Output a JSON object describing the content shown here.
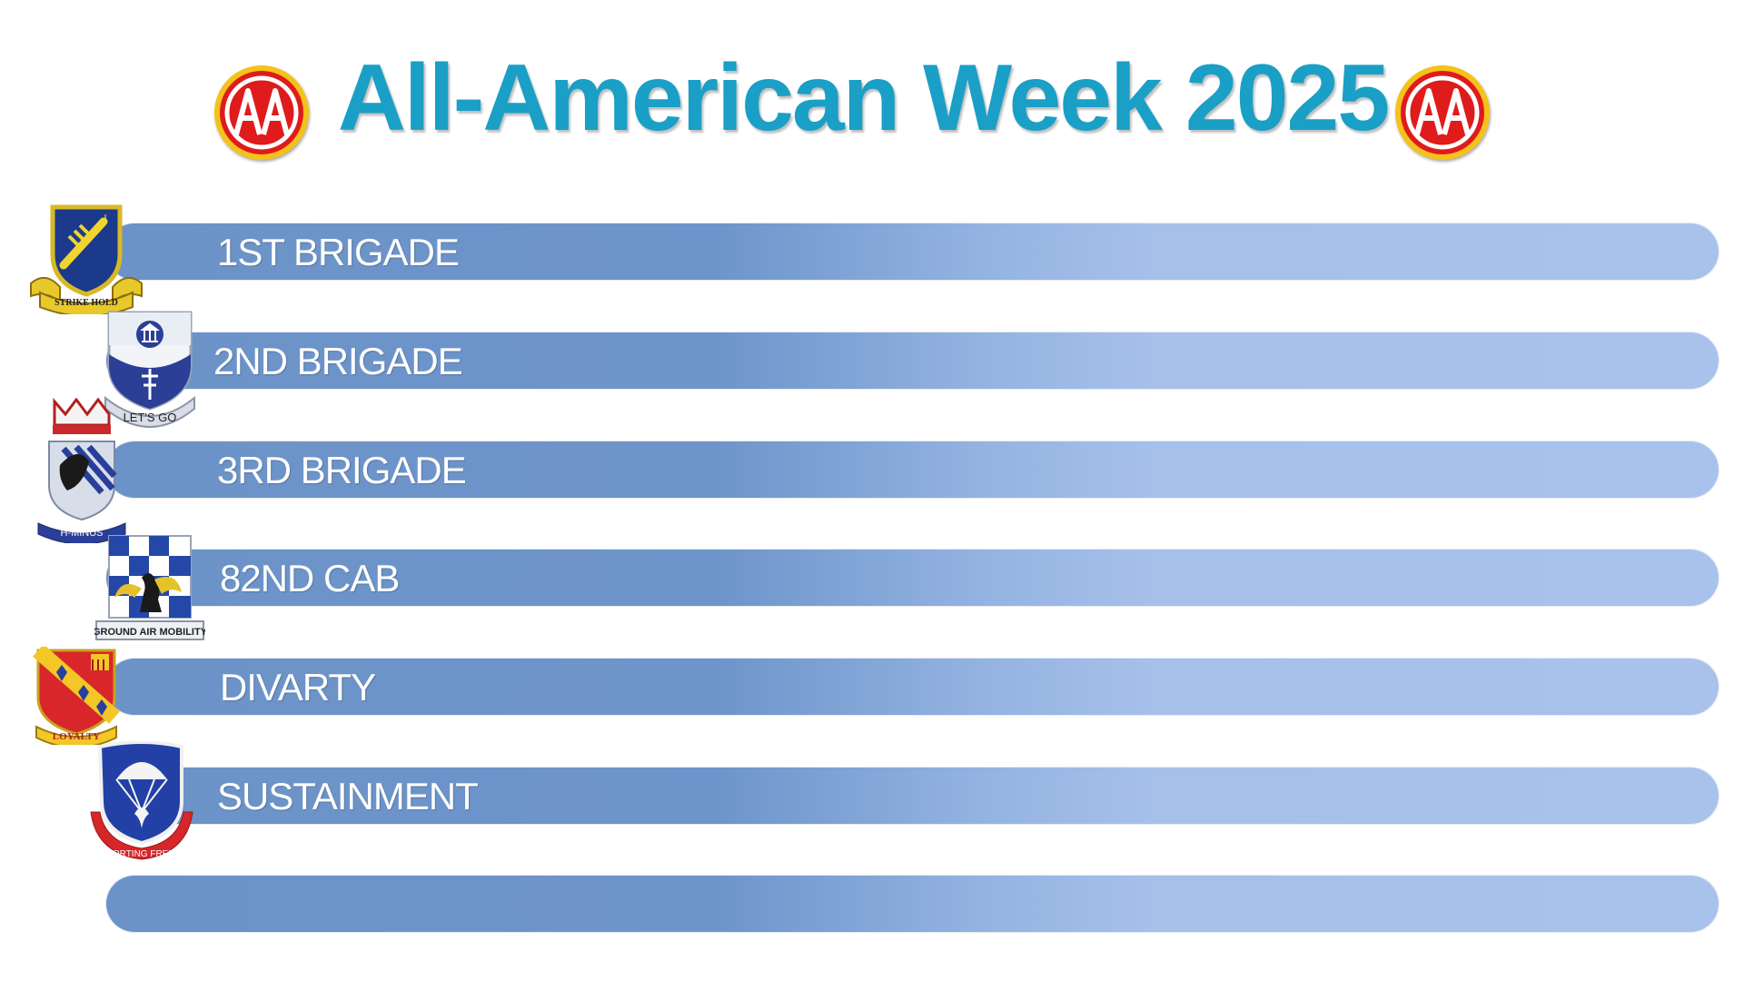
{
  "title": "All-American Week 2025",
  "logos": {
    "left": "AA",
    "right": "AA"
  },
  "units": [
    {
      "label": "1ST BRIGADE",
      "insignia": "strike-hold-crest-icon",
      "motto": "STRIKE HOLD"
    },
    {
      "label": "2ND BRIGADE",
      "insignia": "lets-go-crest-icon",
      "motto": "LET'S GO"
    },
    {
      "label": "3RD BRIGADE",
      "insignia": "h-minus-crest-icon",
      "motto": "H-MINUS"
    },
    {
      "label": "82ND CAB",
      "insignia": "ground-air-mobility-crest-icon",
      "motto": "GROUND AIR MOBILITY"
    },
    {
      "label": "DIVARTY",
      "insignia": "loyalty-crest-icon",
      "motto": "LOYALTY"
    },
    {
      "label": "SUSTAINMENT",
      "insignia": "supporting-freedom-crest-icon",
      "motto": "SUPPORTING FREEDOM"
    },
    {
      "label": "",
      "insignia": "",
      "motto": ""
    }
  ],
  "colors": {
    "title": "#1a9fc6",
    "bar_dark": "#6c93c8",
    "bar_light": "#a9c2ec",
    "logo_red": "#e01b1b",
    "logo_gold": "#f4c21a"
  }
}
